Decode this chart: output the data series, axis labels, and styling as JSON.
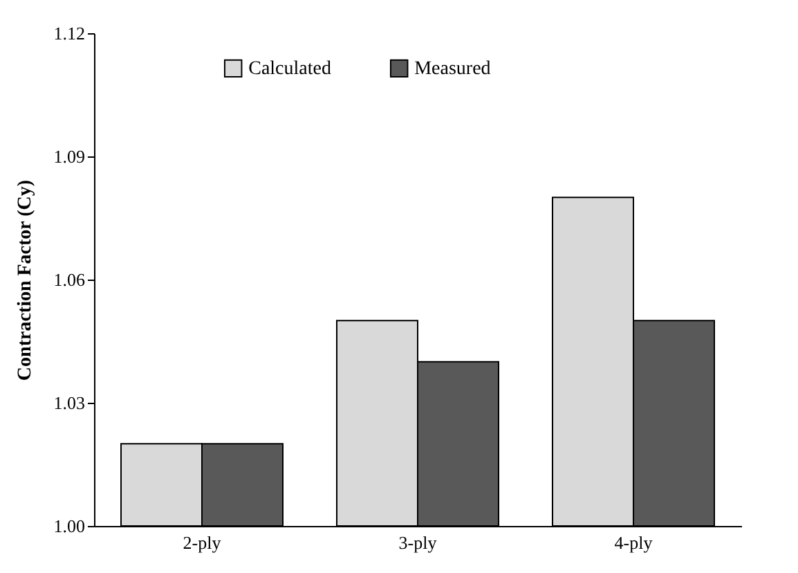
{
  "chart_data": {
    "type": "bar",
    "ylabel": "Contraction Factor (Cy)",
    "categories": [
      "2-ply",
      "3-ply",
      "4-ply"
    ],
    "series": [
      {
        "name": "Calculated",
        "color": "#d9d9d9",
        "values": [
          1.02,
          1.05,
          1.08
        ]
      },
      {
        "name": "Measured",
        "color": "#595959",
        "values": [
          1.02,
          1.04,
          1.05
        ]
      }
    ],
    "ylim": [
      1.0,
      1.12
    ],
    "yticks": [
      {
        "value": 1.0,
        "label": "1.00"
      },
      1.03,
      1.06,
      1.09,
      1.12
    ],
    "grid": false,
    "legend": "top"
  }
}
